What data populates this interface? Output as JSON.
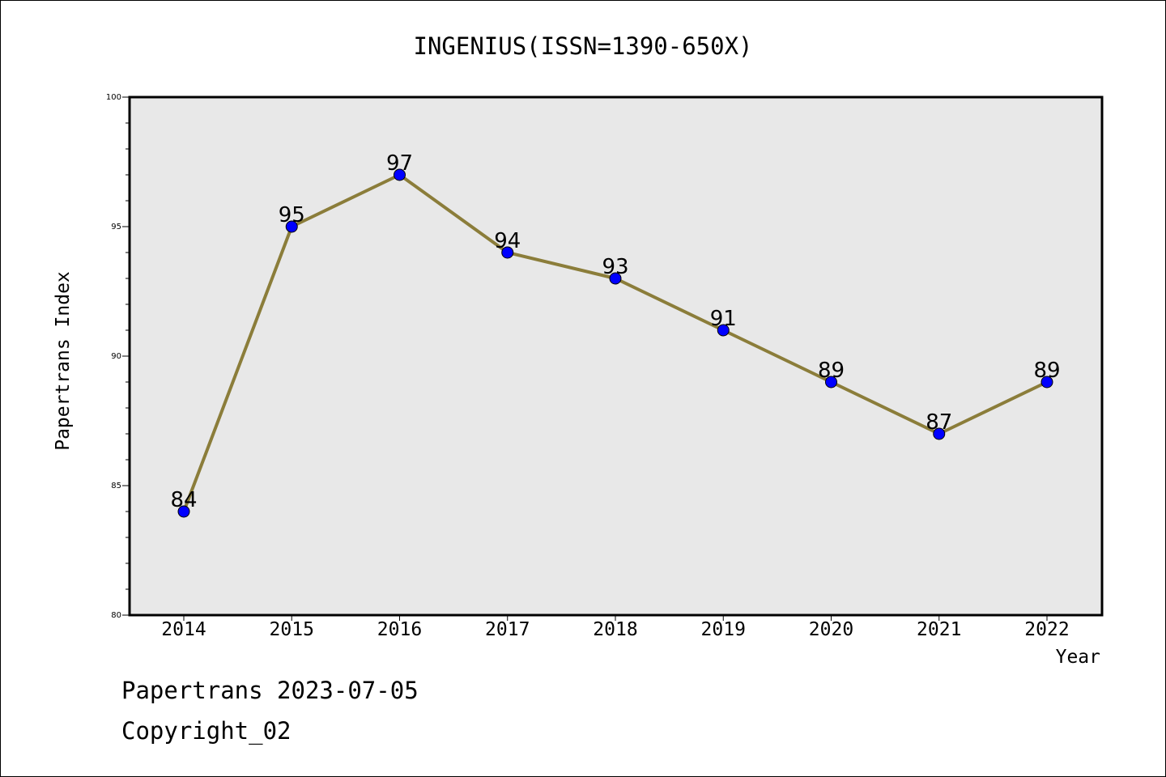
{
  "chart_data": {
    "type": "line",
    "title": "INGENIUS(ISSN=1390-650X)",
    "xlabel": "Year",
    "ylabel": "Papertrans Index",
    "categories": [
      "2014",
      "2015",
      "2016",
      "2017",
      "2018",
      "2019",
      "2020",
      "2021",
      "2022"
    ],
    "series": [
      {
        "values": [
          84,
          95,
          97,
          94,
          93,
          91,
          89,
          87,
          89
        ]
      }
    ],
    "ylim": [
      80,
      100
    ],
    "yticks": [
      "80",
      "85",
      "90",
      "95",
      "100"
    ],
    "data_labels": [
      "84",
      "95",
      "97",
      "94",
      "93",
      "91",
      "89",
      "87",
      "89"
    ],
    "grid": false,
    "legend": "none",
    "colors": {
      "plot_background": "#e8e8e8",
      "line": "#8b7d3a",
      "marker": "#0000ff"
    }
  },
  "footer": {
    "line1": "Papertrans 2023-07-05",
    "line2": "Copyright_02"
  }
}
